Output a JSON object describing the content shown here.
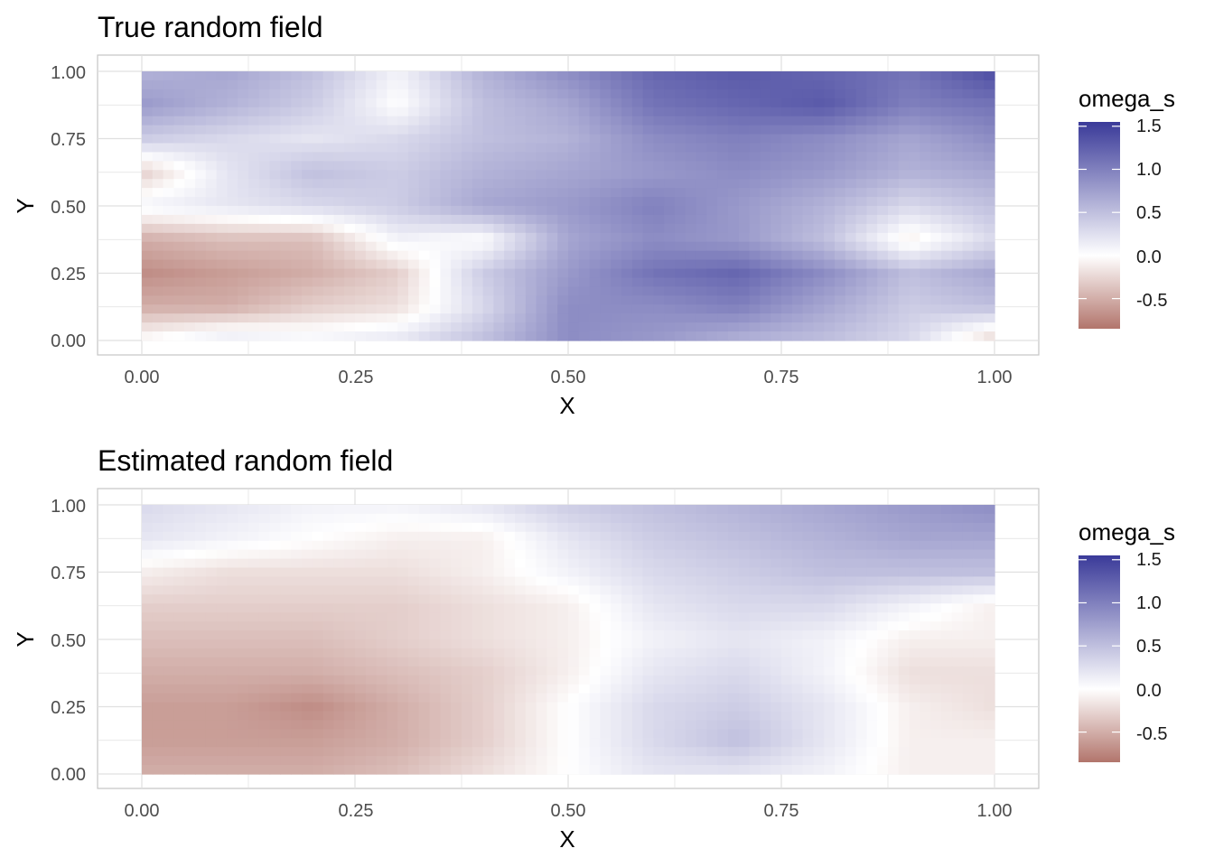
{
  "colors": {
    "low": "#b2756c",
    "mid": "#ffffff",
    "high": "#3a3a99",
    "grid": "#e0e0e0",
    "panel_border": "#c4c4c4"
  },
  "chart_data": [
    {
      "type": "heatmap",
      "title": "True random field",
      "xlabel": "X",
      "ylabel": "Y",
      "xlim": [
        0,
        1
      ],
      "ylim": [
        0,
        1
      ],
      "x_ticks": [
        "0.00",
        "0.25",
        "0.50",
        "0.75",
        "1.00"
      ],
      "y_ticks": [
        "0.00",
        "0.25",
        "0.50",
        "0.75",
        "1.00"
      ],
      "grid": true,
      "legend": {
        "title": "omega_s",
        "position": "right",
        "ticks": [
          "1.5",
          "1.0",
          "0.5",
          "0.0",
          "-0.5"
        ],
        "range": [
          -0.85,
          1.55
        ]
      },
      "x": [
        0.0,
        0.1,
        0.2,
        0.3,
        0.4,
        0.5,
        0.6,
        0.7,
        0.8,
        0.9,
        1.0
      ],
      "y": [
        1.0,
        0.875,
        0.75,
        0.625,
        0.5,
        0.375,
        0.25,
        0.125,
        0.0
      ],
      "z": [
        [
          0.6,
          0.7,
          0.5,
          0.1,
          0.6,
          0.9,
          1.2,
          1.3,
          1.2,
          1.1,
          1.4
        ],
        [
          0.8,
          0.6,
          0.4,
          0.0,
          0.5,
          0.7,
          1.1,
          1.2,
          1.3,
          1.0,
          1.1
        ],
        [
          0.4,
          0.3,
          0.2,
          0.3,
          0.5,
          0.6,
          0.9,
          1.0,
          0.9,
          0.7,
          0.9
        ],
        [
          -0.3,
          0.2,
          0.5,
          0.4,
          0.6,
          0.7,
          0.8,
          0.9,
          0.8,
          0.6,
          0.7
        ],
        [
          0.1,
          0.2,
          0.3,
          0.4,
          0.7,
          0.8,
          1.0,
          0.8,
          0.6,
          0.3,
          0.5
        ],
        [
          -0.5,
          -0.4,
          -0.4,
          0.1,
          0.0,
          0.7,
          0.9,
          0.8,
          0.5,
          -0.1,
          0.3
        ],
        [
          -0.7,
          -0.6,
          -0.5,
          -0.3,
          0.4,
          0.8,
          1.1,
          1.2,
          0.9,
          0.5,
          0.7
        ],
        [
          -0.5,
          -0.5,
          -0.3,
          -0.2,
          0.3,
          0.9,
          0.9,
          1.0,
          0.7,
          0.4,
          0.5
        ],
        [
          0.0,
          0.2,
          0.1,
          0.2,
          0.5,
          0.9,
          0.8,
          0.6,
          0.5,
          0.3,
          -0.3
        ]
      ]
    },
    {
      "type": "heatmap",
      "title": "Estimated random field",
      "xlabel": "X",
      "ylabel": "Y",
      "xlim": [
        0,
        1
      ],
      "ylim": [
        0,
        1
      ],
      "x_ticks": [
        "0.00",
        "0.25",
        "0.50",
        "0.75",
        "1.00"
      ],
      "y_ticks": [
        "0.00",
        "0.25",
        "0.50",
        "0.75",
        "1.00"
      ],
      "grid": true,
      "legend": {
        "title": "omega_s",
        "position": "right",
        "ticks": [
          "1.5",
          "1.0",
          "0.5",
          "0.0",
          "-0.5"
        ],
        "range": [
          -0.85,
          1.55
        ]
      },
      "x": [
        0.0,
        0.1,
        0.2,
        0.3,
        0.4,
        0.5,
        0.6,
        0.7,
        0.8,
        0.9,
        1.0
      ],
      "y": [
        1.0,
        0.875,
        0.75,
        0.625,
        0.5,
        0.375,
        0.25,
        0.125,
        0.0
      ],
      "z": [
        [
          0.3,
          0.2,
          0.1,
          0.1,
          0.2,
          0.4,
          0.5,
          0.6,
          0.7,
          0.8,
          0.9
        ],
        [
          0.2,
          0.1,
          0.0,
          -0.1,
          -0.1,
          0.2,
          0.4,
          0.5,
          0.6,
          0.7,
          0.7
        ],
        [
          -0.1,
          -0.2,
          -0.2,
          -0.2,
          -0.1,
          0.1,
          0.3,
          0.4,
          0.5,
          0.5,
          0.5
        ],
        [
          -0.3,
          -0.3,
          -0.3,
          -0.3,
          -0.2,
          -0.1,
          0.2,
          0.3,
          0.3,
          0.1,
          -0.1
        ],
        [
          -0.4,
          -0.4,
          -0.4,
          -0.3,
          -0.2,
          -0.1,
          0.1,
          0.2,
          0.1,
          -0.1,
          -0.1
        ],
        [
          -0.5,
          -0.5,
          -0.5,
          -0.4,
          -0.3,
          -0.1,
          0.2,
          0.3,
          0.1,
          -0.2,
          -0.2
        ],
        [
          -0.6,
          -0.6,
          -0.7,
          -0.5,
          -0.3,
          0.0,
          0.3,
          0.4,
          0.2,
          -0.1,
          -0.2
        ],
        [
          -0.6,
          -0.6,
          -0.6,
          -0.5,
          -0.3,
          0.0,
          0.3,
          0.5,
          0.2,
          -0.1,
          -0.1
        ],
        [
          -0.5,
          -0.5,
          -0.5,
          -0.4,
          -0.2,
          0.0,
          0.2,
          0.2,
          0.1,
          -0.1,
          -0.1
        ]
      ]
    }
  ]
}
